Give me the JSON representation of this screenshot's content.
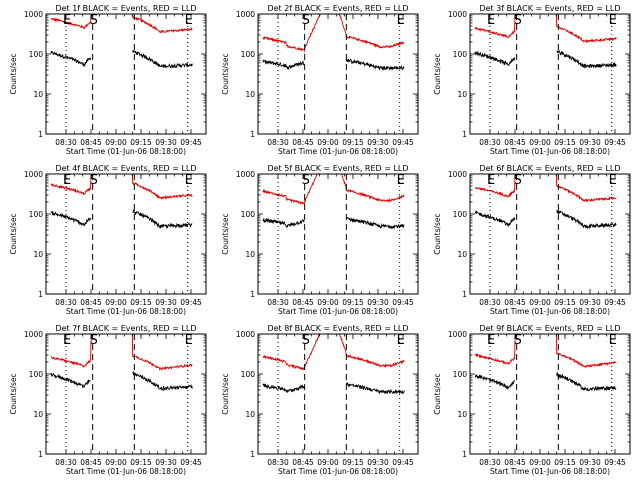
{
  "chart_data": {
    "type": "line",
    "layout": "3x3 grid",
    "yscale": "log",
    "ylim": [
      1,
      1000
    ],
    "y_ticks": [
      "1",
      "10",
      "100",
      "1000"
    ],
    "ylabel": "Counts/sec",
    "xlabel": "Start Time (01-Jun-06 08:18:00)",
    "x_ticks": [
      "08:30",
      "08:45",
      "09:00",
      "09:15",
      "09:30",
      "09:45"
    ],
    "x_tick_minutes": [
      12,
      27,
      42,
      57,
      72,
      87
    ],
    "xlim_minutes": [
      0,
      96
    ],
    "series_colors": {
      "events": "#000000",
      "lld": "#e00000"
    },
    "markers": [
      {
        "label": "E",
        "style": "dotted",
        "minute": 12
      },
      {
        "label": "S",
        "style": "dashed",
        "minute": 28
      },
      {
        "label": "",
        "style": "dashed",
        "minute": 53
      },
      {
        "label": "E",
        "style": "dotted",
        "minute": 85
      }
    ],
    "panels": [
      {
        "title": "Det 1f BLACK = Events, RED = LLD",
        "profile": "A",
        "lld_base": 380,
        "events_base": 45,
        "labels": [
          "E",
          "S",
          "",
          "E"
        ]
      },
      {
        "title": "Det 2f BLACK = Events, RED = LLD",
        "profile": "B",
        "lld_base": 160,
        "events_base": 50,
        "labels": [
          "",
          "S",
          "",
          "E"
        ]
      },
      {
        "title": "Det 3f BLACK = Events, RED = LLD",
        "profile": "A",
        "lld_base": 220,
        "events_base": 45,
        "labels": [
          "E",
          "S",
          "",
          "E"
        ]
      },
      {
        "title": "Det 4f BLACK = Events, RED = LLD",
        "profile": "A",
        "lld_base": 270,
        "events_base": 45,
        "labels": [
          "E",
          "S",
          "",
          "E"
        ]
      },
      {
        "title": "Det 5f BLACK = Events, RED = LLD",
        "profile": "B",
        "lld_base": 230,
        "events_base": 55,
        "labels": [
          "",
          "S",
          "",
          "E"
        ]
      },
      {
        "title": "Det 6f BLACK = Events, RED = LLD",
        "profile": "A",
        "lld_base": 230,
        "events_base": 45,
        "labels": [
          "E",
          "S",
          "",
          "E"
        ]
      },
      {
        "title": "Det 7f BLACK = Events, RED = LLD",
        "profile": "C",
        "lld_base": 130,
        "events_base": 40,
        "labels": [
          "E",
          "S",
          "",
          "E"
        ]
      },
      {
        "title": "Det 8f BLACK = Events, RED = LLD",
        "profile": "B",
        "lld_base": 170,
        "events_base": 40,
        "labels": [
          "",
          "S",
          "",
          "E"
        ]
      },
      {
        "title": "Det 9f BLACK = Events, RED = LLD",
        "profile": "C",
        "lld_base": 150,
        "events_base": 38,
        "labels": [
          "E",
          "S",
          "",
          "E"
        ]
      }
    ]
  }
}
